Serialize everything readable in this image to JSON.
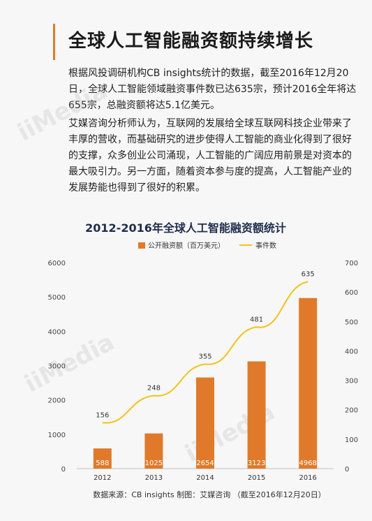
{
  "header": {
    "title": "全球人工智能融资额持续增长"
  },
  "body_text": {
    "paragraph_1": "根据风投调研机构CB insights统计的数据，截至2016年12月20日，全球人工智能领域融资事件数已达635宗，预计2016全年将达655宗，总融资额将达5.1亿美元。",
    "paragraph_2": "艾媒咨询分析师认为，互联网的发展给全球互联网科技企业带来了丰厚的营收，而基础研究的进步使得人工智能的商业化得到了很好的支撑，众多创业公司涌现，人工智能的广阔应用前景是对资本的最大吸引力。另一方面，随着资本参与度的提高，人工智能产业的发展势能也得到了很好的积累。"
  },
  "watermark": {
    "text": "iiMedia"
  },
  "chart_data": {
    "type": "bar",
    "title": "2012-2016年全球人工智能融资额统计",
    "categories": [
      "2012",
      "2013",
      "2014",
      "2015",
      "2016"
    ],
    "series": [
      {
        "name": "公开融资额（百万美元）",
        "type": "bar",
        "axis": "left",
        "values": [
          588,
          1025,
          2654,
          3123,
          4968
        ],
        "color": "#e07a2a"
      },
      {
        "name": "事件数",
        "type": "line",
        "axis": "right",
        "values": [
          156,
          248,
          355,
          481,
          635
        ],
        "color": "#f0c419"
      }
    ],
    "left_axis": {
      "ylim": [
        0,
        6000
      ],
      "ticks": [
        "0",
        "1000",
        "2000",
        "3000",
        "4000",
        "5000",
        "6000"
      ]
    },
    "right_axis": {
      "ylim": [
        0,
        700
      ],
      "ticks": [
        "0",
        "100",
        "200",
        "300",
        "400",
        "500",
        "600",
        "700"
      ]
    },
    "legend_position": "top-center",
    "grid": false,
    "source": "数据来源：CB insights  制图：艾媒咨询 （截至2016年12月20日）"
  }
}
